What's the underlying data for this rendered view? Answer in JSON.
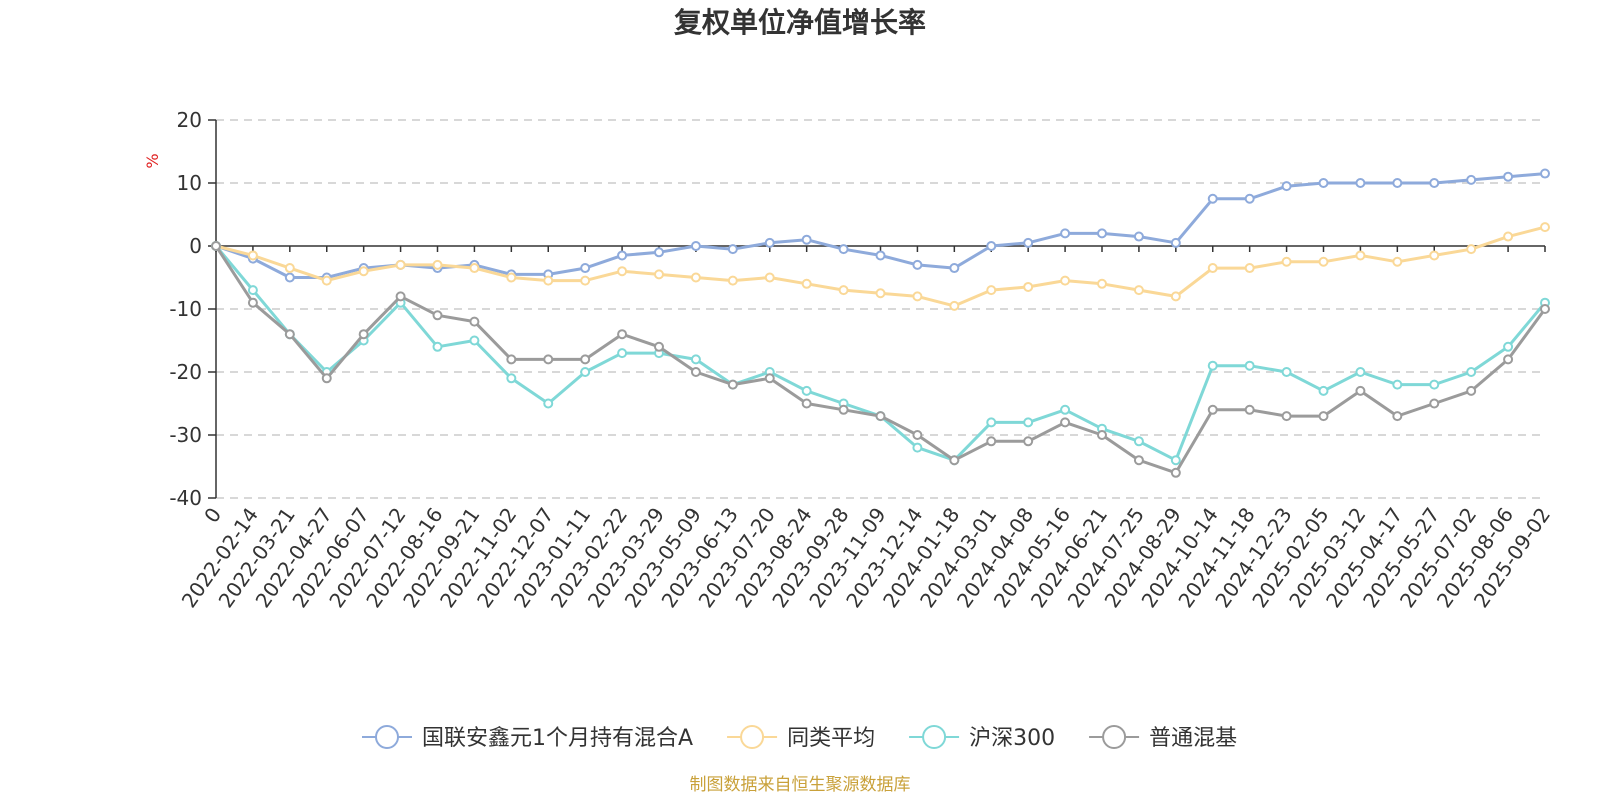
{
  "chart_data": {
    "type": "line",
    "title": "复权单位净值增长率",
    "ylabel": "%",
    "ylim": [
      -40,
      20
    ],
    "yticks": [
      20,
      10,
      0,
      -10,
      -20,
      -30,
      -40
    ],
    "grid": true,
    "legend_position": "bottom",
    "x_categories": [
      "0",
      "2022-02-14",
      "2022-03-21",
      "2022-04-27",
      "2022-06-07",
      "2022-07-12",
      "2022-08-16",
      "2022-09-21",
      "2022-11-02",
      "2022-12-07",
      "2023-01-11",
      "2023-02-22",
      "2023-03-29",
      "2023-05-09",
      "2023-06-13",
      "2023-07-20",
      "2023-08-24",
      "2023-09-28",
      "2023-11-09",
      "2023-12-14",
      "2024-01-18",
      "2024-03-01",
      "2024-04-08",
      "2024-05-16",
      "2024-06-21",
      "2024-07-25",
      "2024-08-29",
      "2024-10-14",
      "2024-11-18",
      "2024-12-23",
      "2025-02-05",
      "2025-03-12",
      "2025-04-17",
      "2025-05-27",
      "2025-07-02",
      "2025-08-06",
      "2025-09-02"
    ],
    "series": [
      {
        "name": "国联安鑫元1个月持有混合A",
        "color": "#8eaadb",
        "values": [
          0,
          -2,
          -5,
          -5,
          -3.5,
          -3,
          -3.5,
          -3,
          -4.5,
          -4.5,
          -3.5,
          -1.5,
          -1,
          0,
          -0.5,
          0.5,
          1,
          -0.5,
          -1.5,
          -3,
          -3.5,
          0,
          0.5,
          2,
          2,
          1.5,
          0.5,
          7.5,
          7.5,
          9.5,
          10,
          10,
          10,
          10,
          10.5,
          11,
          11.5
        ]
      },
      {
        "name": "同类平均",
        "color": "#fad897",
        "values": [
          0,
          -1.5,
          -3.5,
          -5.5,
          -4,
          -3,
          -3,
          -3.5,
          -5,
          -5.5,
          -5.5,
          -4,
          -4.5,
          -5,
          -5.5,
          -5,
          -6,
          -7,
          -7.5,
          -8,
          -9.5,
          -7,
          -6.5,
          -5.5,
          -6,
          -7,
          -8,
          -3.5,
          -3.5,
          -2.5,
          -2.5,
          -1.5,
          -2.5,
          -1.5,
          -0.5,
          1.5,
          3
        ]
      },
      {
        "name": "沪深300",
        "color": "#7fd8d7",
        "values": [
          0,
          -7,
          -14,
          -20,
          -15,
          -9,
          -16,
          -15,
          -21,
          -25,
          -20,
          -17,
          -17,
          -18,
          -22,
          -20,
          -23,
          -25,
          -27,
          -32,
          -34,
          -28,
          -28,
          -26,
          -29,
          -31,
          -34,
          -19,
          -19,
          -20,
          -23,
          -20,
          -22,
          -22,
          -20,
          -16,
          -9
        ]
      },
      {
        "name": "普通混基",
        "color": "#9b9b9b",
        "values": [
          0,
          -9,
          -14,
          -21,
          -14,
          -8,
          -11,
          -12,
          -18,
          -18,
          -18,
          -14,
          -16,
          -20,
          -22,
          -21,
          -25,
          -26,
          -27,
          -30,
          -34,
          -31,
          -31,
          -28,
          -30,
          -34,
          -36,
          -26,
          -26,
          -27,
          -27,
          -23,
          -27,
          -25,
          -23,
          -18,
          -10
        ]
      }
    ],
    "source": "制图数据来自恒生聚源数据库",
    "source_color": "#c9a13a"
  }
}
